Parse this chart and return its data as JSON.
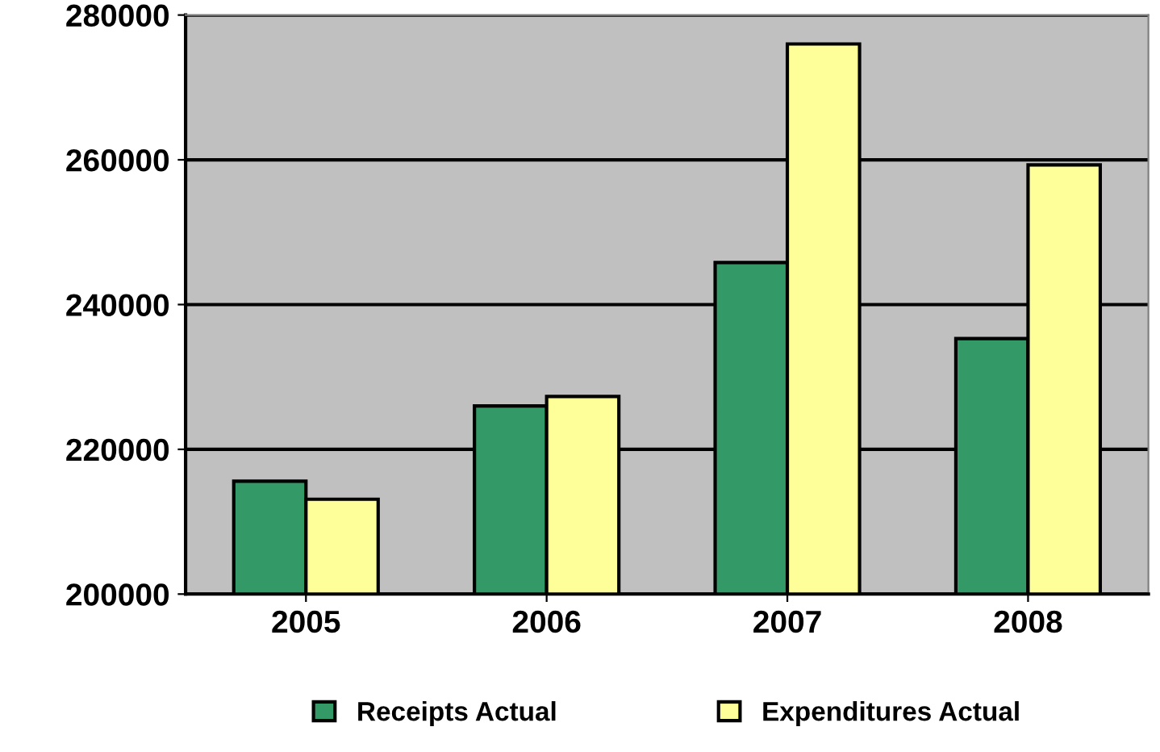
{
  "chart_data": {
    "type": "bar",
    "categories": [
      "2005",
      "2006",
      "2007",
      "2008"
    ],
    "series": [
      {
        "name": "Receipts Actual",
        "color": "#339966",
        "values": [
          215600,
          226000,
          245800,
          235300
        ]
      },
      {
        "name": "Expenditures Actual",
        "color": "#ffff99",
        "values": [
          213100,
          227300,
          276000,
          259300
        ]
      }
    ],
    "ylim": [
      200000,
      280000
    ],
    "yticks": [
      200000,
      220000,
      240000,
      260000,
      280000
    ],
    "grid": "y",
    "legend": "bottom"
  }
}
